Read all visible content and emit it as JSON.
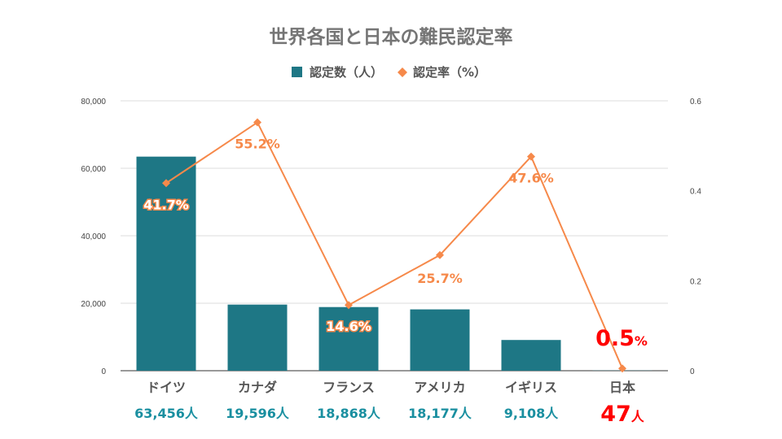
{
  "chart_data": {
    "type": "bar+line",
    "title": "世界各国と日本の難民認定率",
    "categories": [
      "ドイツ",
      "カナダ",
      "フランス",
      "アメリカ",
      "イギリス",
      "日本"
    ],
    "series": [
      {
        "name": "認定数（人）",
        "axis": "left",
        "type": "bar",
        "values": [
          63456,
          19596,
          18868,
          18177,
          9108,
          47
        ],
        "value_labels": [
          "63,456人",
          "19,596人",
          "18,868人",
          "18,177人",
          "9,108人",
          "47人"
        ]
      },
      {
        "name": "認定率（%）",
        "axis": "right",
        "type": "line",
        "values": [
          0.417,
          0.552,
          0.146,
          0.257,
          0.476,
          0.005
        ],
        "value_labels": [
          "41.7%",
          "55.2%",
          "14.6%",
          "25.7%",
          "47.6%",
          "0.5%"
        ]
      }
    ],
    "y_left": {
      "min": 0,
      "max": 80000,
      "ticks": [
        0,
        20000,
        40000,
        60000,
        80000
      ],
      "tick_labels": [
        "0",
        "20,000",
        "40,000",
        "60,000",
        "80,000"
      ]
    },
    "y_right": {
      "min": 0,
      "max": 0.6,
      "ticks": [
        0,
        0.2,
        0.4,
        0.6
      ],
      "tick_labels": [
        "0",
        "0.2",
        "0.4",
        "0.6"
      ]
    },
    "grid": true,
    "legend_position": "top-center",
    "highlight_category": "日本",
    "highlight": {
      "rate_number": "0.5",
      "rate_unit": "%",
      "count_number": "47",
      "count_unit": "人"
    }
  },
  "colors": {
    "bar": "#1e7785",
    "line": "#f6894a",
    "grid": "#dddddd",
    "highlight": "#ff0000"
  }
}
